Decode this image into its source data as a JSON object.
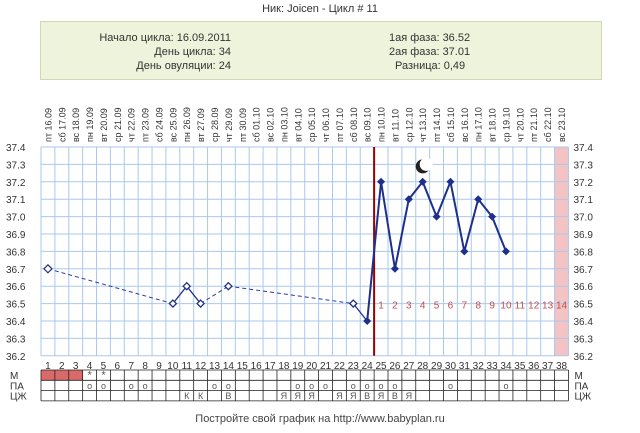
{
  "header": {
    "title": "Ник: Joicen - Цикл # 11"
  },
  "info": {
    "cycle_start": "Начало цикла: 16.09.2011",
    "cycle_day": "День цикла: 34",
    "ovulation_day": "День овуляции: 24",
    "phase1": "1ая фаза: 36.52",
    "phase2": "2ая фаза: 37.01",
    "difference": "Разница: 0,49"
  },
  "footer": {
    "text": "Постройте свой график на http://www.babyplan.ru"
  },
  "row_labels": {
    "m": "М",
    "pa": "ПА",
    "cj": "ЦЖ"
  },
  "colors": {
    "grid": "#a9c8ee",
    "ovulation_line": "#990000",
    "series": "#1f2f8c",
    "dashed": "#2a3a9c",
    "menses": "#d96a6a",
    "post_cycle": "#f4c4c4",
    "phase_numbers": "#c05050"
  },
  "chart_data": {
    "type": "line",
    "days": [
      "1",
      "2",
      "3",
      "4",
      "5",
      "6",
      "7",
      "8",
      "9",
      "10",
      "11",
      "12",
      "13",
      "14",
      "15",
      "16",
      "17",
      "18",
      "19",
      "20",
      "21",
      "22",
      "23",
      "24",
      "25",
      "26",
      "27",
      "28",
      "29",
      "30",
      "31",
      "32",
      "33",
      "34",
      "35",
      "36",
      "37",
      "38"
    ],
    "dates": [
      "пт 16.09",
      "сб 17.09",
      "вс 18.09",
      "пн 19.09",
      "вт 20.09",
      "ср 21.09",
      "чт 22.09",
      "пт 23.09",
      "сб 24.09",
      "вс 25.09",
      "пн 26.09",
      "вт 27.09",
      "ср 28.09",
      "чт 29.09",
      "пт 30.09",
      "сб 01.10",
      "вс 02.10",
      "пн 03.10",
      "вт 04.10",
      "ср 05.10",
      "чт 06.10",
      "пт 07.10",
      "сб 08.10",
      "вс 09.10",
      "пн 10.10",
      "вт 11.10",
      "ср 12.10",
      "чт 13.10",
      "пт 14.10",
      "сб 15.10",
      "вс 16.10",
      "пн 17.10",
      "вт 18.10",
      "ср 19.10",
      "чт 20.10",
      "пт 21.10",
      "сб 22.10",
      "вс 23.10"
    ],
    "y_ticks": [
      "37.4",
      "37.3",
      "37.2",
      "37.1",
      "37.0",
      "36.9",
      "36.8",
      "36.7",
      "36.6",
      "36.5",
      "36.4",
      "36.3",
      "36.2"
    ],
    "ylim": [
      36.2,
      37.4
    ],
    "points": [
      {
        "day": 1,
        "temp": 36.7,
        "open": true
      },
      {
        "day": 10,
        "temp": 36.5
      },
      {
        "day": 11,
        "temp": 36.6
      },
      {
        "day": 12,
        "temp": 36.5
      },
      {
        "day": 14,
        "temp": 36.6
      },
      {
        "day": 23,
        "temp": 36.5
      },
      {
        "day": 24,
        "temp": 36.4
      },
      {
        "day": 25,
        "temp": 37.2
      },
      {
        "day": 26,
        "temp": 36.7
      },
      {
        "day": 27,
        "temp": 37.1
      },
      {
        "day": 28,
        "temp": 37.2
      },
      {
        "day": 29,
        "temp": 37.0
      },
      {
        "day": 30,
        "temp": 37.2
      },
      {
        "day": 31,
        "temp": 36.8
      },
      {
        "day": 32,
        "temp": 37.1
      },
      {
        "day": 33,
        "temp": 37.0
      },
      {
        "day": 34,
        "temp": 36.8
      }
    ],
    "dashed_until_day": 24,
    "ovulation_day": 24,
    "phase2_numbers": [
      "1",
      "2",
      "3",
      "4",
      "5",
      "6",
      "7",
      "8",
      "9",
      "10",
      "11",
      "12",
      "13",
      "14"
    ],
    "phase2_start_day": 25,
    "post_cycle_day": 38,
    "menses_days": [
      1,
      2,
      3
    ],
    "moon_day": 28,
    "row_m": [
      {
        "day": 4,
        "mark": "*"
      },
      {
        "day": 5,
        "mark": "*"
      }
    ],
    "row_pa": [
      {
        "day": 4,
        "mark": "о"
      },
      {
        "day": 5,
        "mark": "о"
      },
      {
        "day": 7,
        "mark": "о"
      },
      {
        "day": 8,
        "mark": "о"
      },
      {
        "day": 13,
        "mark": "о"
      },
      {
        "day": 14,
        "mark": "о"
      },
      {
        "day": 19,
        "mark": "о"
      },
      {
        "day": 20,
        "mark": "о"
      },
      {
        "day": 21,
        "mark": "о"
      },
      {
        "day": 23,
        "mark": "о"
      },
      {
        "day": 24,
        "mark": "о"
      },
      {
        "day": 25,
        "mark": "о"
      },
      {
        "day": 26,
        "mark": "о"
      },
      {
        "day": 30,
        "mark": "о"
      },
      {
        "day": 34,
        "mark": "о"
      }
    ],
    "row_cj": [
      {
        "day": 11,
        "mark": "К"
      },
      {
        "day": 12,
        "mark": "К"
      },
      {
        "day": 14,
        "mark": "В"
      },
      {
        "day": 18,
        "mark": "Я"
      },
      {
        "day": 19,
        "mark": "Я"
      },
      {
        "day": 20,
        "mark": "Я"
      },
      {
        "day": 22,
        "mark": "Я"
      },
      {
        "day": 23,
        "mark": "Я"
      },
      {
        "day": 24,
        "mark": "В"
      },
      {
        "day": 25,
        "mark": "Я"
      },
      {
        "day": 26,
        "mark": "В"
      },
      {
        "day": 27,
        "mark": "Я"
      }
    ]
  }
}
